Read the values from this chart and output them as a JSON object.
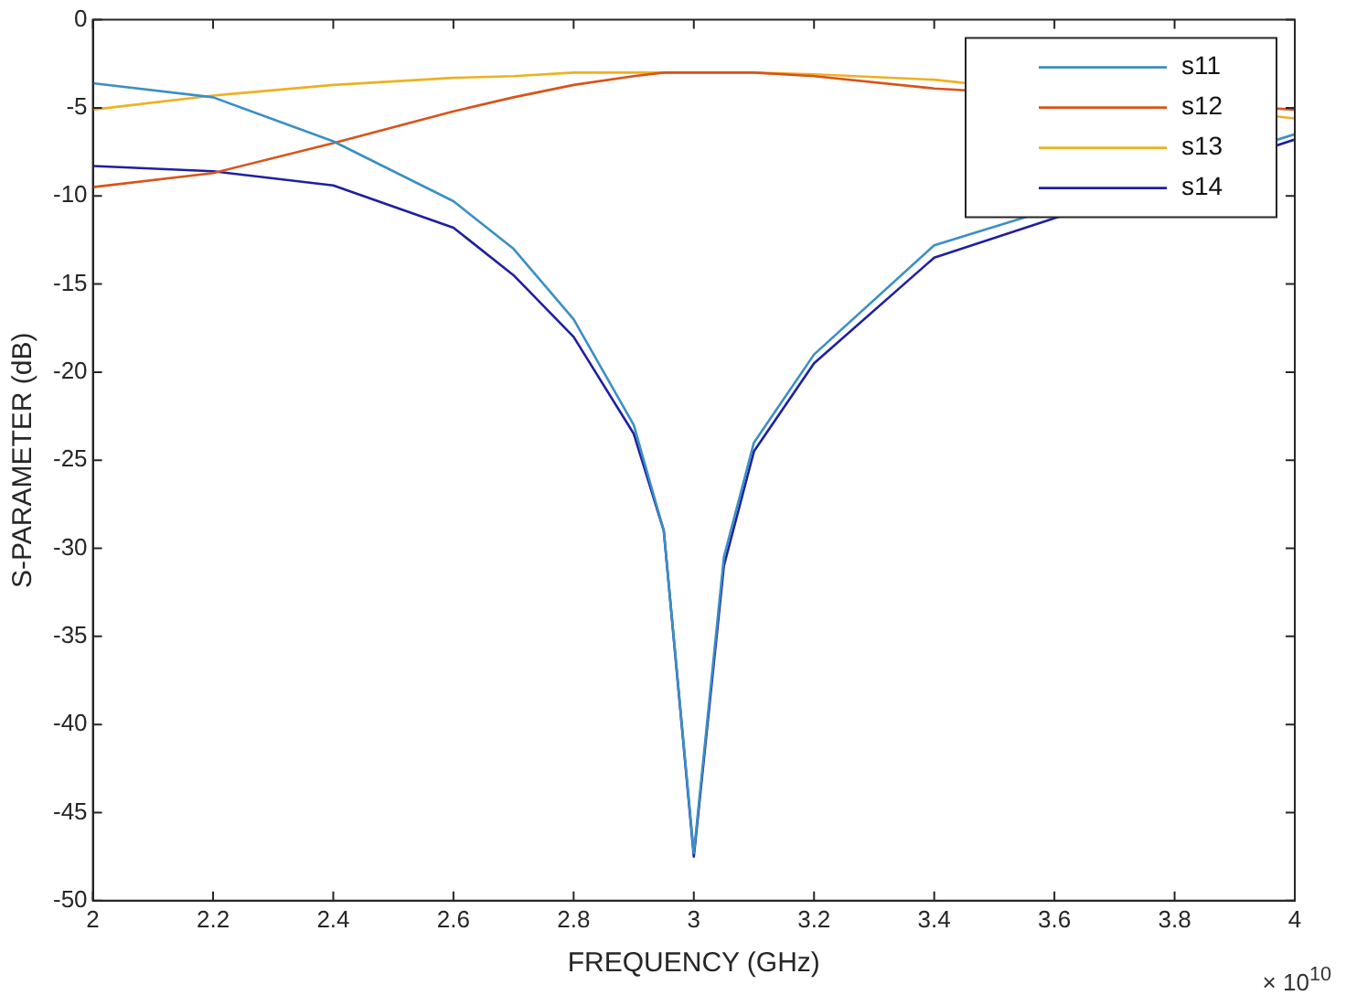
{
  "chart_data": {
    "type": "line",
    "xlabel": "FREQUENCY (GHz)",
    "ylabel": "S-PARAMETER (dB)",
    "annotations": [
      "× 10$^{10}$"
    ],
    "x": [
      2,
      2.2,
      2.4,
      2.6,
      2.7,
      2.8,
      2.9,
      2.95,
      3,
      3.05,
      3.1,
      3.2,
      3.4,
      3.6,
      3.8,
      4
    ],
    "series": [
      {
        "name": "s11",
        "color": "#3b8fc4",
        "values": [
          -3.6,
          -4.4,
          -6.9,
          -10.3,
          -13,
          -17,
          -23,
          -29,
          -47.3,
          -30.5,
          -24,
          -19,
          -12.8,
          null,
          null,
          -6.5
        ]
      },
      {
        "name": "s12",
        "color": "#d95319",
        "values": [
          -9.5,
          -8.7,
          -7,
          -5.2,
          -4.4,
          -3.7,
          -3.2,
          -3,
          -3,
          -3,
          -3,
          -3.2,
          -3.9,
          null,
          null,
          -5.1
        ]
      },
      {
        "name": "s13",
        "color": "#edb120",
        "values": [
          -5.1,
          -4.3,
          -3.7,
          -3.3,
          -3.2,
          -3,
          -3,
          -3,
          -3,
          -3,
          -3,
          -3.1,
          -3.4,
          null,
          null,
          -5.6
        ]
      },
      {
        "name": "s14",
        "color": "#1f1fa0",
        "values": [
          -8.3,
          -8.6,
          -9.4,
          -11.8,
          -14.5,
          -18,
          -23.5,
          -29,
          -47.5,
          -31,
          -24.5,
          -19.5,
          -13.5,
          null,
          null,
          -6.8
        ]
      }
    ],
    "xlim": [
      2,
      4
    ],
    "xticks": [
      2,
      2.2,
      2.4,
      2.6,
      2.8,
      3,
      3.2,
      3.4,
      3.6,
      3.8,
      4
    ],
    "ylim": [
      -50,
      0
    ],
    "yticks": [
      -50,
      -45,
      -40,
      -35,
      -30,
      -25,
      -20,
      -15,
      -10,
      -5,
      0
    ],
    "grid": false,
    "legend": "top right",
    "marker": "none",
    "line_style": "solid"
  }
}
